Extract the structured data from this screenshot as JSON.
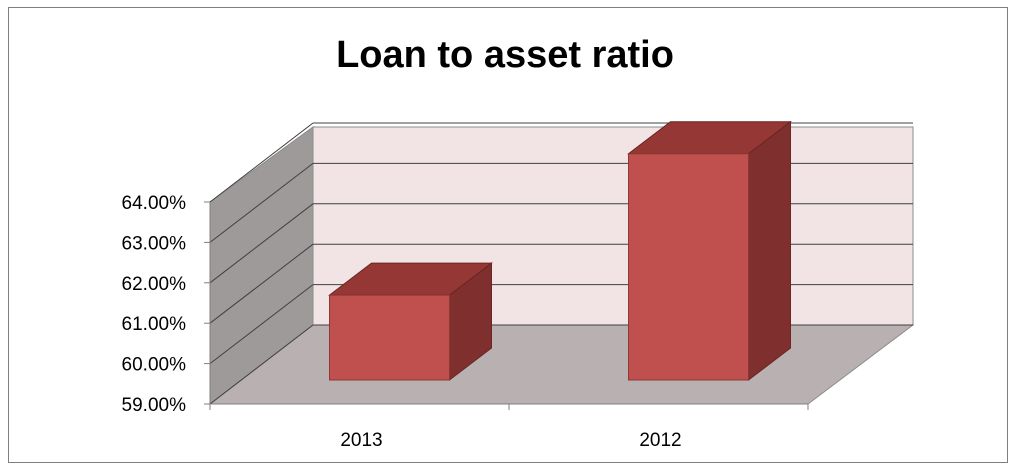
{
  "chart_data": {
    "type": "bar",
    "style": "3d-column",
    "title": "Loan to asset ratio",
    "categories": [
      "2013",
      "2012"
    ],
    "series": [
      {
        "values": [
          61.1,
          64.6
        ]
      }
    ],
    "xlabel": "",
    "ylabel": "",
    "ylim": [
      59,
      65
    ],
    "yticks": [
      "59.00%",
      "60.00%",
      "61.00%",
      "62.00%",
      "63.00%",
      "64.00%"
    ],
    "grid": true,
    "legend": "none"
  },
  "colors": {
    "bar_front": "#c0504d",
    "bar_top": "#953735",
    "bar_side": "#7f2f2d",
    "back_wall": "#f2e4e4",
    "side_wall": "#9e9a9a",
    "floor": "#b9b1b1",
    "gridline": "#404040"
  }
}
